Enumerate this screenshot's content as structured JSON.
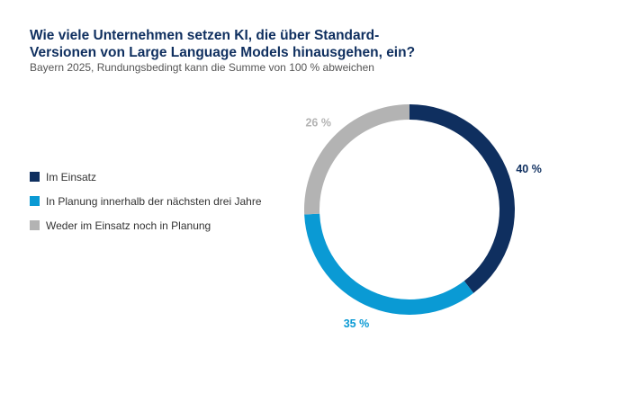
{
  "chart_data": {
    "type": "pie",
    "variant": "donut",
    "title": "Wie viele Unternehmen setzen KI, die über Standard-Versionen von Large Language Models hinausgehen, ein?",
    "subtitle": "Bayern 2025, Rundungsbedingt kann die Summe von 100 % abweichen",
    "legend_position": "left",
    "slices": [
      {
        "name": "Im Einsatz",
        "value": 40,
        "label": "40 %",
        "color": "#0f2f5f"
      },
      {
        "name": "In Planung innerhalb der nächsten drei Jahre",
        "value": 35,
        "label": "35 %",
        "color": "#0a9ad4"
      },
      {
        "name": "Weder im Einsatz noch in Planung",
        "value": 26,
        "label": "26 %",
        "color": "#b3b3b3"
      }
    ]
  }
}
